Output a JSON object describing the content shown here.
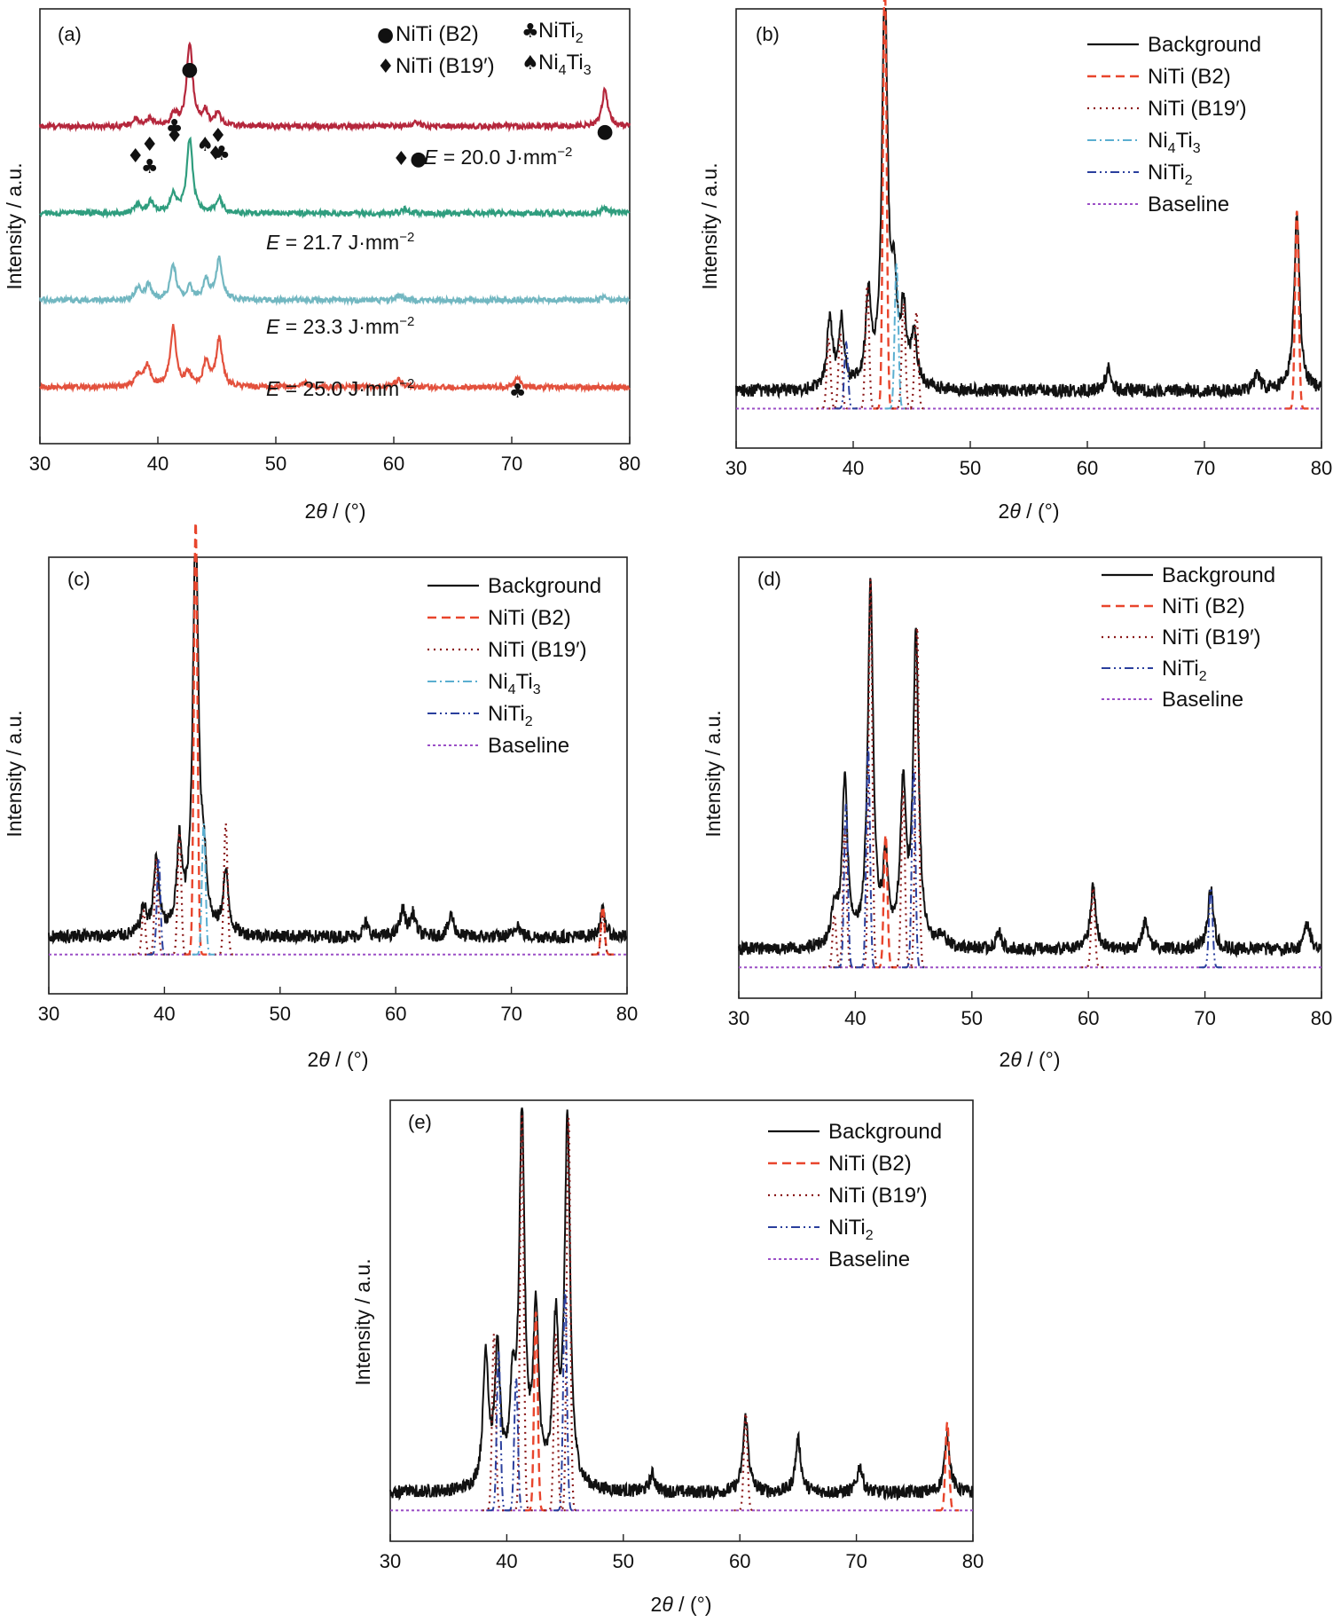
{
  "figure": {
    "xlabel": "2θ / (°)",
    "ylabel": "Intensity / a.u.",
    "xticks": [
      "30",
      "40",
      "50",
      "60",
      "70",
      "80"
    ]
  },
  "chart_data": [
    {
      "id": "a",
      "label": "(a)",
      "type": "line",
      "xlim": [
        30,
        80
      ],
      "xlabel": "2θ / (°)",
      "ylabel": "Intensity / a.u.",
      "legend": [
        {
          "symbol": "●",
          "name": "NiTi (B2)"
        },
        {
          "symbol": "♦",
          "name": "NiTi (B19′)"
        },
        {
          "symbol": "♣",
          "name": "NiTi2"
        },
        {
          "symbol": "♠",
          "name": "Ni4Ti3"
        }
      ],
      "series": [
        {
          "name": "E = 20.0 J·mm−2",
          "color": "#b5273c",
          "offset": 0.73,
          "scale": 0.2,
          "peaks": [
            [
              38.1,
              0.08
            ],
            [
              39.3,
              0.09
            ],
            [
              41.4,
              0.14
            ],
            [
              42.7,
              0.95
            ],
            [
              44.0,
              0.16
            ],
            [
              45.1,
              0.14
            ],
            [
              61.9,
              0.05
            ],
            [
              77.9,
              0.42
            ]
          ]
        },
        {
          "name": "E = 21.7 J·mm−2",
          "color": "#2f9d7e",
          "offset": 0.53,
          "scale": 0.2,
          "peaks": [
            [
              38.3,
              0.1
            ],
            [
              39.4,
              0.13
            ],
            [
              41.3,
              0.22
            ],
            [
              42.7,
              0.85
            ],
            [
              45.2,
              0.17
            ],
            [
              61.0,
              0.05
            ],
            [
              77.9,
              0.07
            ]
          ]
        },
        {
          "name": "E = 23.3 J·mm−2",
          "color": "#72b7c1",
          "offset": 0.33,
          "scale": 0.2,
          "peaks": [
            [
              38.3,
              0.14
            ],
            [
              39.2,
              0.17
            ],
            [
              41.3,
              0.4
            ],
            [
              42.7,
              0.14
            ],
            [
              44.1,
              0.22
            ],
            [
              45.2,
              0.47
            ],
            [
              60.5,
              0.06
            ],
            [
              77.9,
              0.05
            ]
          ]
        },
        {
          "name": "E = 25.0 J·mm−2",
          "color": "#e3513d",
          "offset": 0.13,
          "scale": 0.2,
          "peaks": [
            [
              38.3,
              0.13
            ],
            [
              39.1,
              0.25
            ],
            [
              41.3,
              0.68
            ],
            [
              42.6,
              0.15
            ],
            [
              44.1,
              0.28
            ],
            [
              45.2,
              0.55
            ],
            [
              52.4,
              0.05
            ],
            [
              60.4,
              0.1
            ],
            [
              70.5,
              0.1
            ]
          ]
        }
      ],
      "annotations": [
        {
          "text": "E = 20.0 J·mm−2",
          "markers": "♦●"
        },
        {
          "text": "E = 21.7 J·mm−2"
        },
        {
          "text": "E = 23.3 J·mm−2"
        },
        {
          "text": "E = 25.0 J·mm−2"
        }
      ],
      "peak_markers": [
        {
          "x": 38.1,
          "symbol": "♦"
        },
        {
          "x": 39.3,
          "symbol": "♦"
        },
        {
          "x": 39.3,
          "symbol": "♣"
        },
        {
          "x": 41.4,
          "symbol": "♦"
        },
        {
          "x": 41.4,
          "symbol": "♣"
        },
        {
          "x": 42.7,
          "symbol": "●"
        },
        {
          "x": 44.0,
          "symbol": "♠"
        },
        {
          "x": 45.1,
          "symbol": "♦"
        },
        {
          "x": 44.9,
          "symbol": "♦"
        },
        {
          "x": 45.4,
          "symbol": "♣"
        },
        {
          "x": 77.9,
          "symbol": "●"
        },
        {
          "x": 70.5,
          "symbol": "♣"
        }
      ]
    },
    {
      "id": "b",
      "label": "(b)",
      "type": "line",
      "xlim": [
        30,
        80
      ],
      "xlabel": "2θ / (°)",
      "ylabel": "Intensity / a.u.",
      "legend": [
        "Background",
        "NiTi (B2)",
        "NiTi (B19′)",
        "Ni4Ti3",
        "NiTi2",
        "Baseline"
      ],
      "baseline": 0.09,
      "background_peaks": [
        [
          38.0,
          0.16
        ],
        [
          39.0,
          0.15
        ],
        [
          41.3,
          0.2
        ],
        [
          42.7,
          0.92
        ],
        [
          43.5,
          0.2
        ],
        [
          44.3,
          0.16
        ],
        [
          45.2,
          0.12
        ],
        [
          61.8,
          0.05
        ],
        [
          74.5,
          0.04
        ],
        [
          77.9,
          0.4
        ]
      ],
      "fits": [
        {
          "name": "NiTi (B2)",
          "peaks": [
            [
              42.7,
              0.98
            ],
            [
              77.9,
              0.45
            ]
          ]
        },
        {
          "name": "NiTi (B19′)",
          "peaks": [
            [
              37.9,
              0.16
            ],
            [
              38.9,
              0.17
            ],
            [
              41.2,
              0.28
            ],
            [
              44.3,
              0.24
            ],
            [
              45.4,
              0.22
            ]
          ]
        },
        {
          "name": "Ni4Ti3",
          "peaks": [
            [
              43.7,
              0.33
            ]
          ]
        },
        {
          "name": "NiTi2",
          "peaks": [
            [
              39.4,
              0.15
            ]
          ]
        }
      ]
    },
    {
      "id": "c",
      "label": "(c)",
      "type": "line",
      "xlim": [
        30,
        80
      ],
      "xlabel": "2θ / (°)",
      "ylabel": "Intensity / a.u.",
      "legend": [
        "Background",
        "NiTi (B2)",
        "NiTi (B19′)",
        "Ni4Ti3",
        "NiTi2",
        "Baseline"
      ],
      "baseline": 0.09,
      "background_peaks": [
        [
          38.2,
          0.06
        ],
        [
          39.3,
          0.17
        ],
        [
          41.3,
          0.2
        ],
        [
          42.7,
          0.95
        ],
        [
          43.4,
          0.13
        ],
        [
          45.3,
          0.14
        ],
        [
          57.4,
          0.03
        ],
        [
          60.6,
          0.06
        ],
        [
          61.5,
          0.05
        ],
        [
          64.8,
          0.05
        ],
        [
          70.5,
          0.03
        ],
        [
          77.9,
          0.06
        ]
      ],
      "fits": [
        {
          "name": "NiTi (B2)",
          "peaks": [
            [
              42.7,
              0.99
            ],
            [
              77.9,
              0.11
            ]
          ]
        },
        {
          "name": "NiTi (B19′)",
          "peaks": [
            [
              38.2,
              0.1
            ],
            [
              39.3,
              0.22
            ],
            [
              41.3,
              0.28
            ],
            [
              45.3,
              0.3
            ],
            [
              77.9,
              0.09
            ]
          ]
        },
        {
          "name": "Ni4Ti3",
          "peaks": [
            [
              43.4,
              0.3
            ]
          ]
        },
        {
          "name": "NiTi2",
          "peaks": [
            [
              39.5,
              0.22
            ]
          ]
        }
      ]
    },
    {
      "id": "d",
      "label": "(d)",
      "type": "line",
      "xlim": [
        30,
        80
      ],
      "xlabel": "2θ / (°)",
      "ylabel": "Intensity / a.u.",
      "legend": [
        "Background",
        "NiTi (B2)",
        "NiTi (B19′)",
        "NiTi2",
        "Baseline"
      ],
      "baseline": 0.07,
      "background_peaks": [
        [
          38.2,
          0.09
        ],
        [
          39.1,
          0.37
        ],
        [
          41.3,
          0.82
        ],
        [
          42.6,
          0.18
        ],
        [
          44.1,
          0.35
        ],
        [
          45.2,
          0.7
        ],
        [
          47.5,
          0.03
        ],
        [
          52.3,
          0.04
        ],
        [
          60.4,
          0.14
        ],
        [
          64.9,
          0.07
        ],
        [
          70.5,
          0.14
        ],
        [
          78.8,
          0.06
        ]
      ],
      "fits": [
        {
          "name": "NiTi (B2)",
          "peaks": [
            [
              42.6,
              0.3
            ]
          ]
        },
        {
          "name": "NiTi (B19′)",
          "peaks": [
            [
              38.2,
              0.12
            ],
            [
              39.1,
              0.32
            ],
            [
              41.3,
              0.88
            ],
            [
              44.1,
              0.4
            ],
            [
              45.3,
              0.77
            ],
            [
              60.4,
              0.18
            ]
          ]
        },
        {
          "name": "NiTi2",
          "peaks": [
            [
              39.2,
              0.37
            ],
            [
              41.1,
              0.5
            ],
            [
              45.0,
              0.45
            ],
            [
              70.5,
              0.18
            ]
          ]
        }
      ]
    },
    {
      "id": "e",
      "label": "(e)",
      "type": "line",
      "xlim": [
        30,
        80
      ],
      "xlabel": "2θ / (°)",
      "ylabel": "Intensity / a.u.",
      "legend": [
        "Background",
        "NiTi (B2)",
        "NiTi (B19′)",
        "NiTi2",
        "Baseline"
      ],
      "baseline": 0.07,
      "background_peaks": [
        [
          38.2,
          0.3
        ],
        [
          39.2,
          0.3
        ],
        [
          40.5,
          0.2
        ],
        [
          41.3,
          0.83
        ],
        [
          42.5,
          0.38
        ],
        [
          44.2,
          0.35
        ],
        [
          45.2,
          0.83
        ],
        [
          52.5,
          0.04
        ],
        [
          60.5,
          0.17
        ],
        [
          65.0,
          0.12
        ],
        [
          70.3,
          0.06
        ],
        [
          77.8,
          0.13
        ]
      ],
      "fits": [
        {
          "name": "NiTi (B2)",
          "peaks": [
            [
              42.5,
              0.45
            ],
            [
              77.8,
              0.2
            ]
          ]
        },
        {
          "name": "NiTi (B19′)",
          "peaks": [
            [
              38.9,
              0.4
            ],
            [
              41.3,
              0.9
            ],
            [
              44.2,
              0.4
            ],
            [
              45.3,
              0.89
            ],
            [
              60.5,
              0.22
            ]
          ]
        },
        {
          "name": "NiTi2",
          "peaks": [
            [
              39.3,
              0.36
            ],
            [
              40.8,
              0.3
            ],
            [
              45.0,
              0.5
            ]
          ]
        }
      ]
    }
  ]
}
